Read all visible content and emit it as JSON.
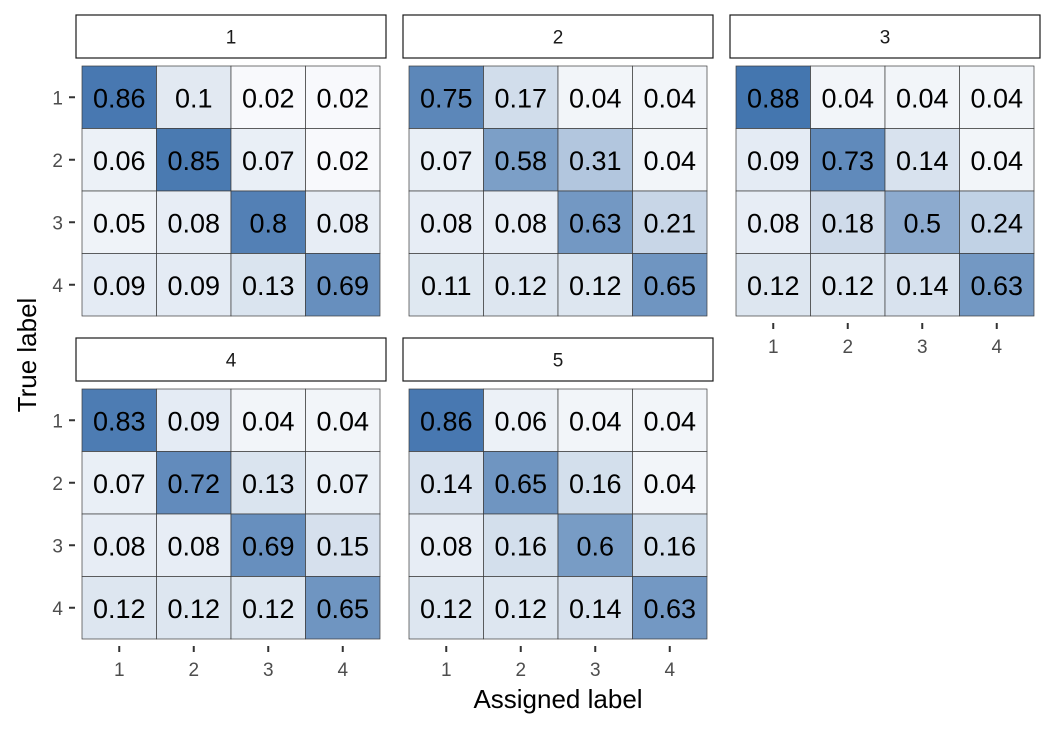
{
  "chart_data": {
    "type": "heatmap",
    "xlabel": "Assigned label",
    "ylabel": "True label",
    "x_categories": [
      "1",
      "2",
      "3",
      "4"
    ],
    "y_categories": [
      "1",
      "2",
      "3",
      "4"
    ],
    "color_low": "#ffffff",
    "color_high": "#2f66a6",
    "panels": [
      {
        "name": "1",
        "values": [
          [
            0.86,
            0.1,
            0.02,
            0.02
          ],
          [
            0.06,
            0.85,
            0.07,
            0.02
          ],
          [
            0.05,
            0.08,
            0.8,
            0.08
          ],
          [
            0.09,
            0.09,
            0.13,
            0.69
          ]
        ]
      },
      {
        "name": "2",
        "values": [
          [
            0.75,
            0.17,
            0.04,
            0.04
          ],
          [
            0.07,
            0.58,
            0.31,
            0.04
          ],
          [
            0.08,
            0.08,
            0.63,
            0.21
          ],
          [
            0.11,
            0.12,
            0.12,
            0.65
          ]
        ]
      },
      {
        "name": "3",
        "values": [
          [
            0.88,
            0.04,
            0.04,
            0.04
          ],
          [
            0.09,
            0.73,
            0.14,
            0.04
          ],
          [
            0.08,
            0.18,
            0.5,
            0.24
          ],
          [
            0.12,
            0.12,
            0.14,
            0.63
          ]
        ]
      },
      {
        "name": "4",
        "values": [
          [
            0.83,
            0.09,
            0.04,
            0.04
          ],
          [
            0.07,
            0.72,
            0.13,
            0.07
          ],
          [
            0.08,
            0.08,
            0.69,
            0.15
          ],
          [
            0.12,
            0.12,
            0.12,
            0.65
          ]
        ]
      },
      {
        "name": "5",
        "values": [
          [
            0.86,
            0.06,
            0.04,
            0.04
          ],
          [
            0.14,
            0.65,
            0.16,
            0.04
          ],
          [
            0.08,
            0.16,
            0.6,
            0.16
          ],
          [
            0.12,
            0.12,
            0.14,
            0.63
          ]
        ]
      }
    ]
  }
}
